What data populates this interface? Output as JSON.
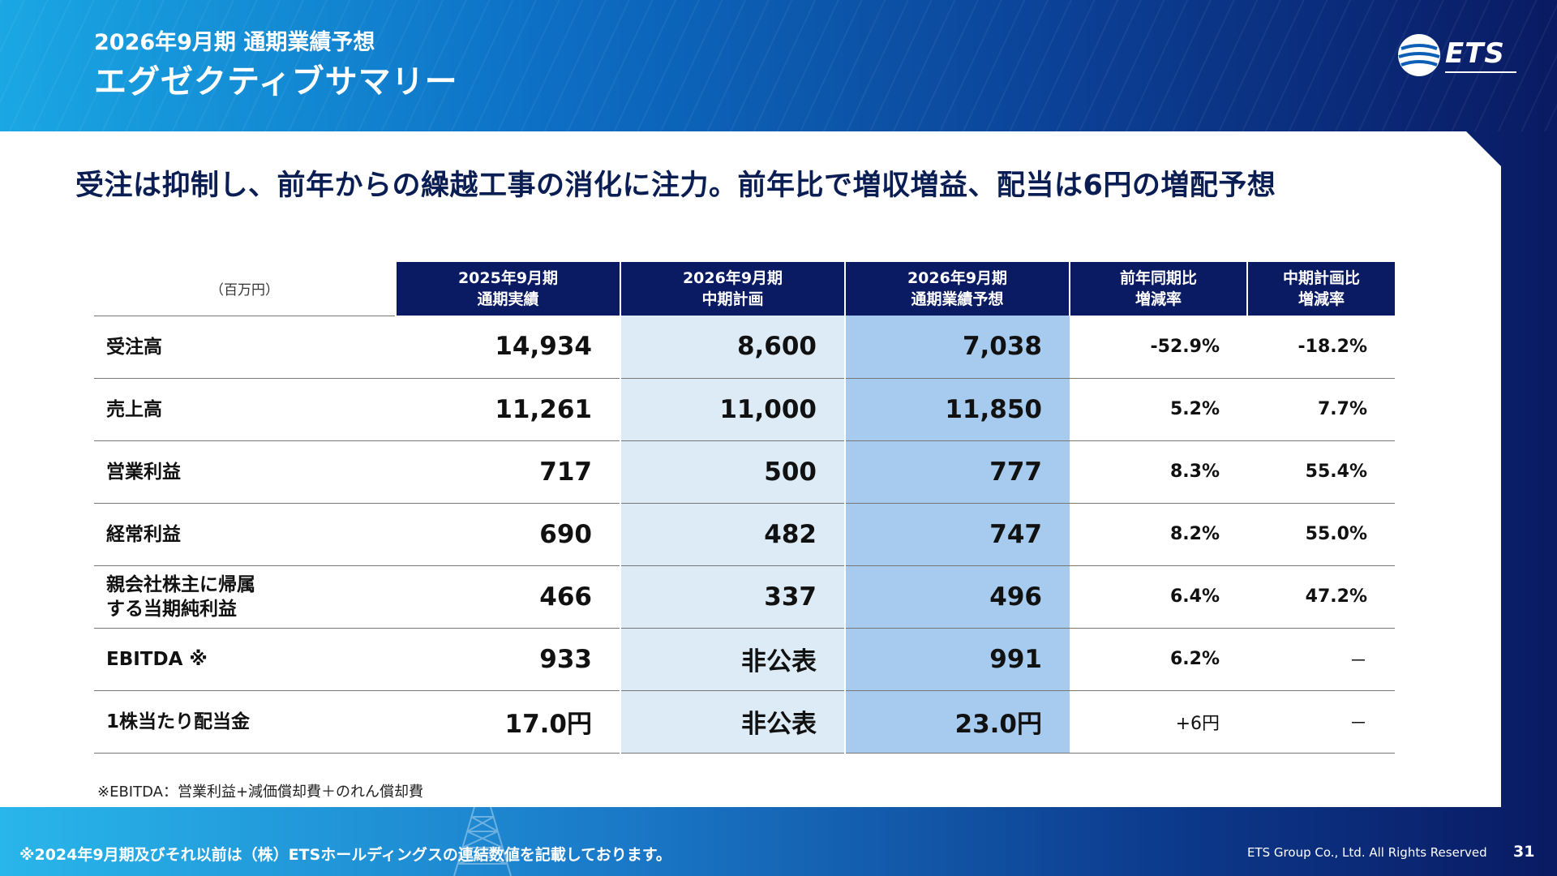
{
  "header": {
    "subtitle": "2026年9月期 通期業績予想",
    "title": "エグゼクティブサマリー",
    "logo_text": "ETS"
  },
  "headline": "受注は抑制し、前年からの繰越工事の消化に注力。前年比で増収増益、配当は6円の増配予想",
  "table": {
    "unit": "（百万円）",
    "columns": [
      {
        "line1": "2025年9月期",
        "line2": "通期実績"
      },
      {
        "line1": "2026年9月期",
        "line2": "中期計画"
      },
      {
        "line1": "2026年9月期",
        "line2": "通期業績予想"
      },
      {
        "line1": "前年同期比",
        "line2": "増減率"
      },
      {
        "line1": "中期計画比",
        "line2": "増減率"
      }
    ],
    "rows": [
      {
        "label": "受注高",
        "v": [
          "14,934",
          "8,600",
          "7,038",
          "-52.9%",
          "-18.2%"
        ]
      },
      {
        "label": "売上高",
        "v": [
          "11,261",
          "11,000",
          "11,850",
          "5.2%",
          "7.7%"
        ]
      },
      {
        "label": "営業利益",
        "v": [
          "717",
          "500",
          "777",
          "8.3%",
          "55.4%"
        ]
      },
      {
        "label": "経常利益",
        "v": [
          "690",
          "482",
          "747",
          "8.2%",
          "55.0%"
        ]
      },
      {
        "label": "親会社株主に帰属\nする当期純利益",
        "v": [
          "466",
          "337",
          "496",
          "6.4%",
          "47.2%"
        ]
      },
      {
        "label": "EBITDA ※",
        "v": [
          "933",
          "非公表",
          "991",
          "6.2%",
          "－"
        ]
      },
      {
        "label": "1株当たり配当金",
        "v": [
          "17.0円",
          "非公表",
          "23.0円",
          "+6円",
          "－"
        ]
      }
    ]
  },
  "footnote": "※EBITDA：営業利益+減価償却費＋のれん償却費",
  "footer": {
    "note": "※2024年9月期及びそれ以前は（株）ETSホールディングスの連結数値を記載しております。",
    "copyright": "ETS Group Co., Ltd. All Rights Reserved",
    "page": "31"
  },
  "colors": {
    "navy": "#0a1a63",
    "plan_col": "#ddebf7",
    "forecast_col": "#a6cbee",
    "headline": "#0b1e54"
  }
}
